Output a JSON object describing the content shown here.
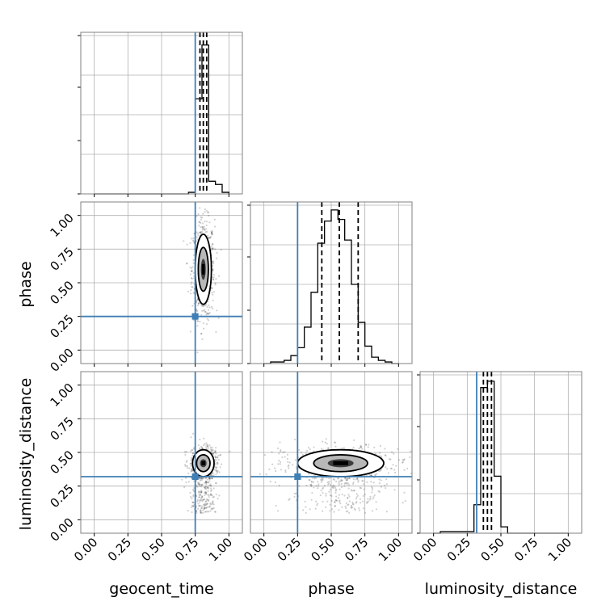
{
  "chart_data": {
    "type": "corner",
    "parameters": [
      "geocent_time",
      "phase",
      "luminosity_distance"
    ],
    "axis_range": [
      -0.1,
      1.1
    ],
    "ticks": [
      0.0,
      0.25,
      0.5,
      0.75,
      1.0
    ],
    "tick_labels": [
      "0.00",
      "0.25",
      "0.50",
      "0.75",
      "1.00"
    ],
    "colors": {
      "truth": "#3f7fb5",
      "hist": "#000000",
      "grid": "#b0b0b0",
      "frame": "#808080"
    },
    "truths": {
      "geocent_time": 0.75,
      "phase": 0.25,
      "luminosity_distance": 0.32
    },
    "marginals": [
      {
        "parameter": "geocent_time",
        "bins": [
          0.0,
          0.05,
          0.1,
          0.15,
          0.2,
          0.25,
          0.3,
          0.35,
          0.4,
          0.45,
          0.5,
          0.55,
          0.6,
          0.65,
          0.7,
          0.75,
          0.8,
          0.85,
          0.9,
          0.95,
          1.0
        ],
        "heights": [
          0,
          0,
          0,
          0,
          0,
          0,
          0,
          0,
          0,
          0,
          0,
          0,
          0,
          0,
          0.01,
          0.6,
          0.94,
          0.08,
          0.06,
          0.01
        ],
        "quantiles": [
          0.785,
          0.81,
          0.835
        ]
      },
      {
        "parameter": "phase",
        "bins": [
          0.0,
          0.05,
          0.1,
          0.15,
          0.2,
          0.25,
          0.3,
          0.35,
          0.4,
          0.45,
          0.5,
          0.55,
          0.6,
          0.65,
          0.7,
          0.75,
          0.8,
          0.85,
          0.9,
          0.95,
          1.0
        ],
        "heights": [
          0.0,
          0.01,
          0.01,
          0.02,
          0.05,
          0.1,
          0.23,
          0.45,
          0.76,
          0.9,
          0.97,
          0.91,
          0.78,
          0.5,
          0.26,
          0.11,
          0.04,
          0.02,
          0.01,
          0.0
        ],
        "quantiles": [
          0.43,
          0.56,
          0.7
        ]
      },
      {
        "parameter": "luminosity_distance",
        "bins": [
          0.0,
          0.05,
          0.1,
          0.15,
          0.2,
          0.25,
          0.3,
          0.35,
          0.4,
          0.45,
          0.5,
          0.55,
          0.6,
          0.65,
          0.7,
          0.75,
          0.8,
          0.85,
          0.9,
          0.95,
          1.0
        ],
        "heights": [
          0.0,
          0.01,
          0.01,
          0.01,
          0.01,
          0.01,
          0.18,
          0.92,
          0.96,
          0.36,
          0.04,
          0,
          0,
          0,
          0,
          0,
          0,
          0,
          0,
          0
        ],
        "quantiles": [
          0.37,
          0.4,
          0.43
        ]
      }
    ],
    "joint": [
      {
        "x": "geocent_time",
        "y": "phase",
        "center": [
          0.81,
          0.6
        ],
        "spread": [
          0.03,
          0.13
        ]
      },
      {
        "x": "geocent_time",
        "y": "luminosity_distance",
        "center": [
          0.81,
          0.42
        ],
        "spread": [
          0.04,
          0.05
        ]
      },
      {
        "x": "phase",
        "y": "luminosity_distance",
        "center": [
          0.57,
          0.42
        ],
        "spread": [
          0.16,
          0.05
        ]
      }
    ]
  }
}
